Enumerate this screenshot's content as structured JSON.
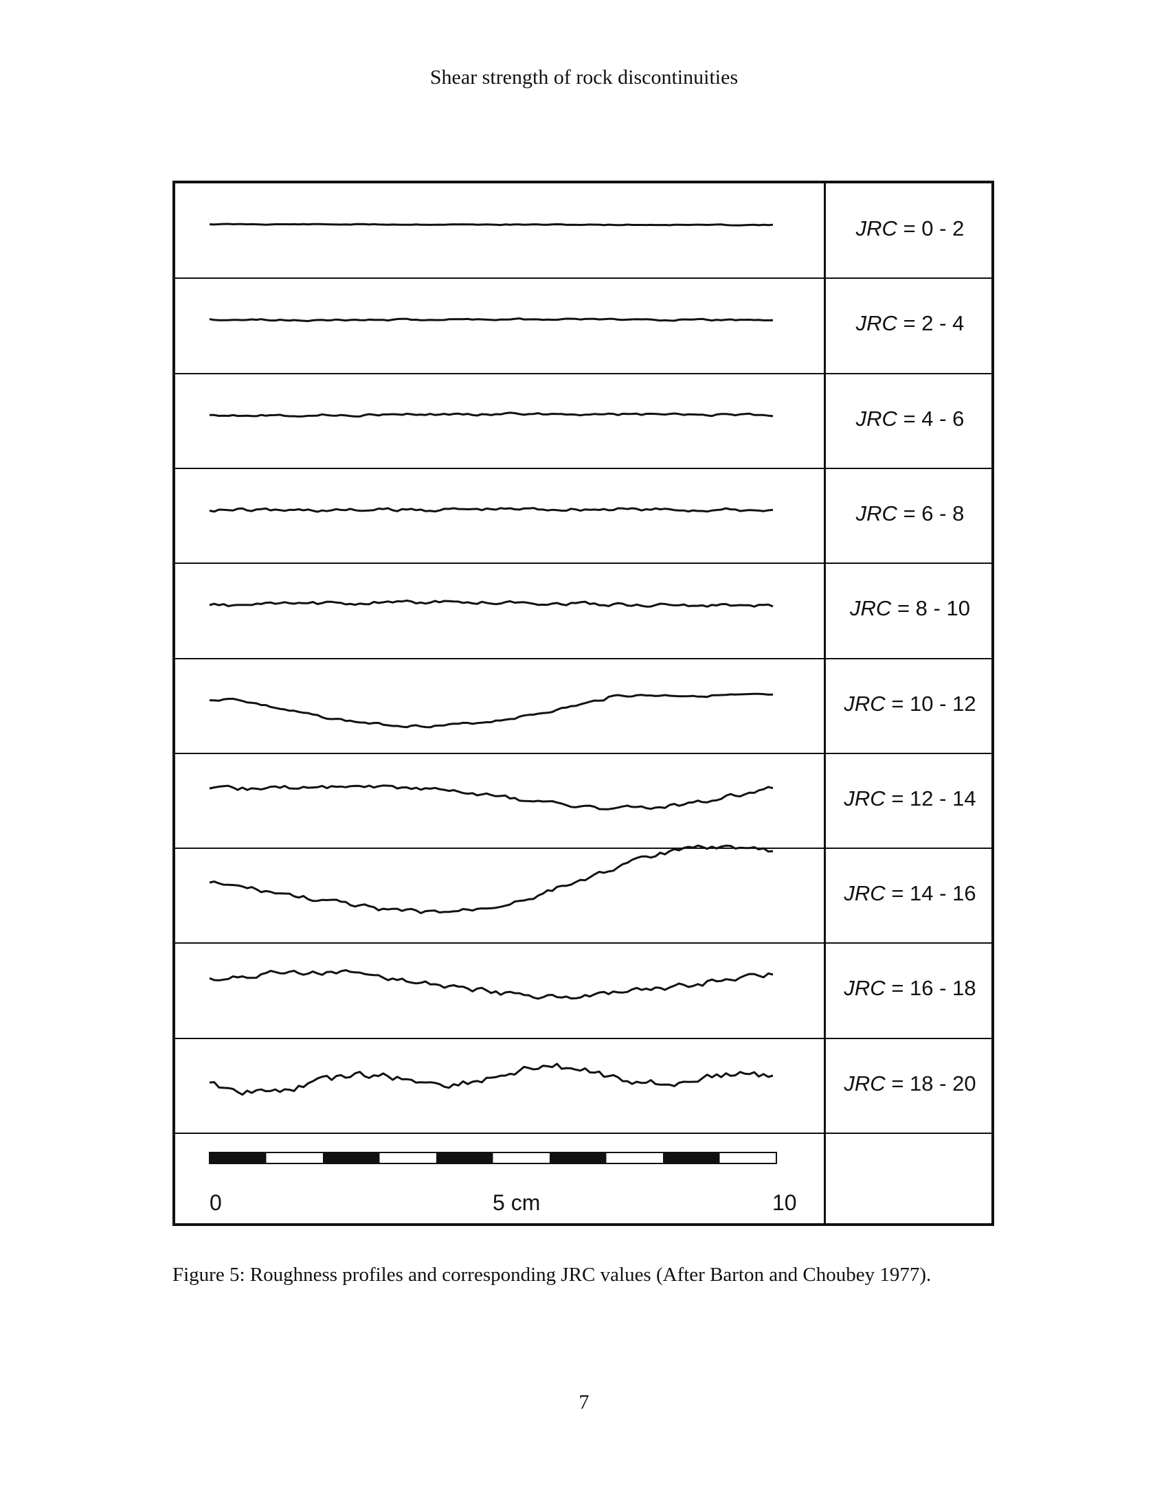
{
  "header": {
    "running_title": "Shear strength of rock discontinuities"
  },
  "figure": {
    "rows": [
      {
        "jrc_symbol": "JRC",
        "range": "= 0 - 2",
        "amplitude": 0.12,
        "bumps": 0.1,
        "seed": 11,
        "bias": "tilt"
      },
      {
        "jrc_symbol": "JRC",
        "range": "= 2 - 4",
        "amplitude": 0.18,
        "bumps": 0.2,
        "seed": 23,
        "bias": "flat"
      },
      {
        "jrc_symbol": "JRC",
        "range": "= 4 - 6",
        "amplitude": 0.22,
        "bumps": 0.3,
        "seed": 37,
        "bias": "flat"
      },
      {
        "jrc_symbol": "JRC",
        "range": "= 6 - 8",
        "amplitude": 0.26,
        "bumps": 0.45,
        "seed": 41,
        "bias": "flat"
      },
      {
        "jrc_symbol": "JRC",
        "range": "= 8 - 10",
        "amplitude": 0.35,
        "bumps": 0.45,
        "seed": 53,
        "bias": "hump"
      },
      {
        "jrc_symbol": "JRC",
        "range": "= 10 - 12",
        "amplitude": 0.8,
        "bumps": 0.3,
        "seed": 67,
        "bias": "valley"
      },
      {
        "jrc_symbol": "JRC",
        "range": "= 12 - 14",
        "amplitude": 0.75,
        "bumps": 0.55,
        "seed": 71,
        "bias": "wave1"
      },
      {
        "jrc_symbol": "JRC",
        "range": "= 14 - 16",
        "amplitude": 0.85,
        "bumps": 0.6,
        "seed": 83,
        "bias": "wave2"
      },
      {
        "jrc_symbol": "JRC",
        "range": "= 16 - 18",
        "amplitude": 0.8,
        "bumps": 0.75,
        "seed": 97,
        "bias": "wave3"
      },
      {
        "jrc_symbol": "JRC",
        "range": "= 18 - 20",
        "amplitude": 0.85,
        "bumps": 0.95,
        "seed": 101,
        "bias": "wave4"
      }
    ],
    "scale_bar": {
      "segments": 10,
      "label_start": "0",
      "label_mid": "5 cm",
      "label_end": "10"
    }
  },
  "caption": "Figure 5: Roughness profiles and corresponding JRC values (After Barton and Choubey 1977).",
  "page_number": "7"
}
